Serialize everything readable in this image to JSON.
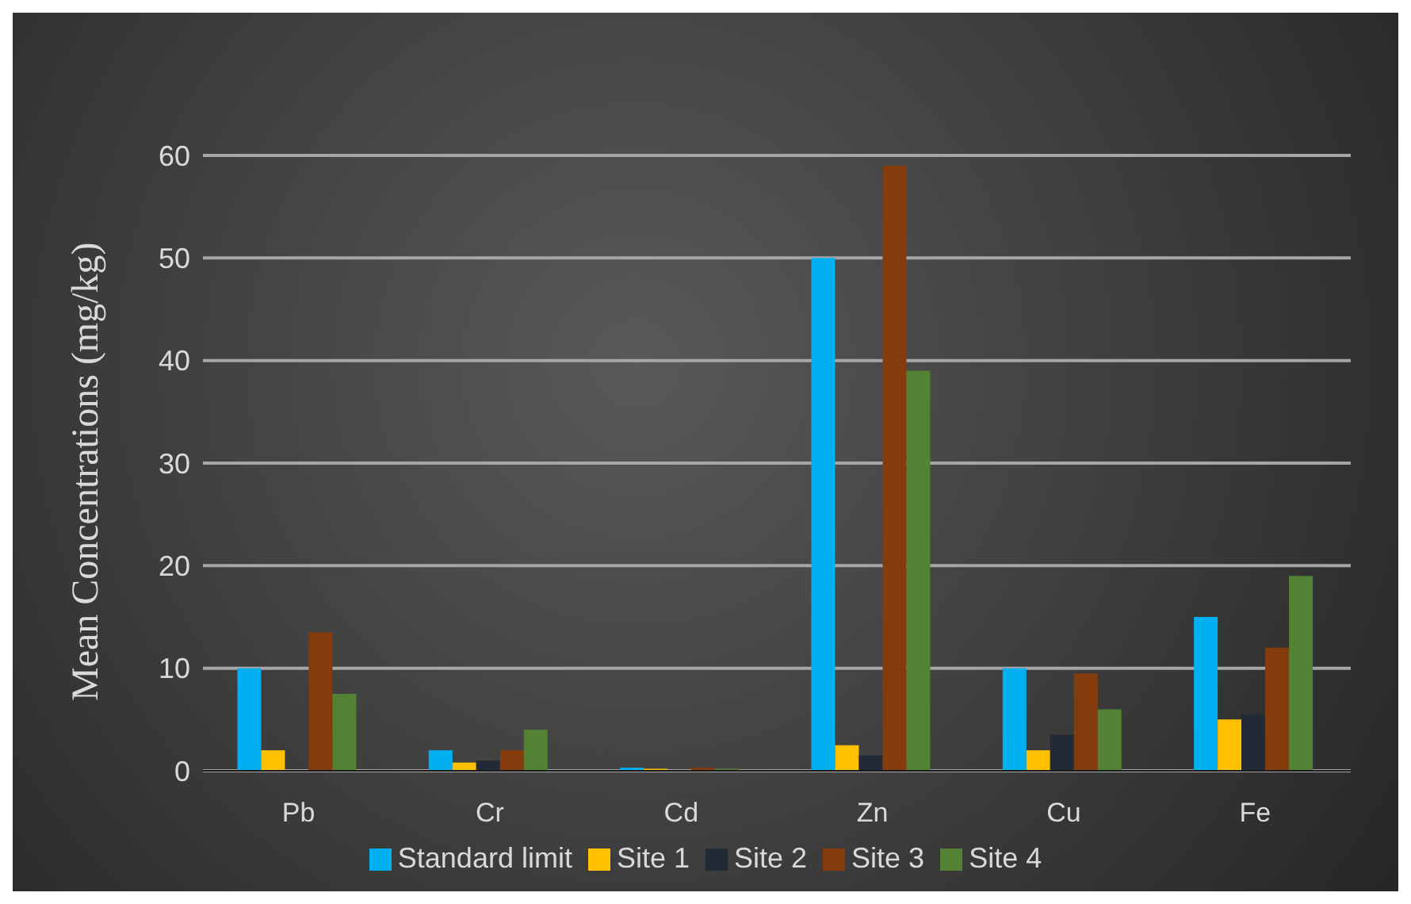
{
  "chart_data": {
    "type": "bar",
    "ylabel": "Mean Concentrations (mg/kg)",
    "categories": [
      "Pb",
      "Cr",
      "Cd",
      "Zn",
      "Cu",
      "Fe"
    ],
    "series": [
      {
        "name": "Standard limit",
        "color": "#00b0f0",
        "values": [
          10,
          2,
          0.3,
          50,
          10,
          15
        ]
      },
      {
        "name": "Site 1",
        "color": "#ffc000",
        "values": [
          2,
          0.8,
          0.2,
          2.5,
          2,
          5
        ]
      },
      {
        "name": "Site 2",
        "color": "#222a35",
        "values": [
          null,
          1,
          null,
          1.5,
          3.5,
          5.5
        ]
      },
      {
        "name": "Site 3",
        "color": "#843c0c",
        "values": [
          13.5,
          2,
          0.3,
          59,
          9.5,
          12
        ]
      },
      {
        "name": "Site 4",
        "color": "#548235",
        "values": [
          7.5,
          4,
          0.2,
          39,
          6,
          19
        ]
      }
    ],
    "ylim": [
      0,
      60
    ],
    "yticks": [
      0,
      10,
      20,
      30,
      40,
      50,
      60
    ],
    "grid": "y",
    "legend": "bottom"
  }
}
